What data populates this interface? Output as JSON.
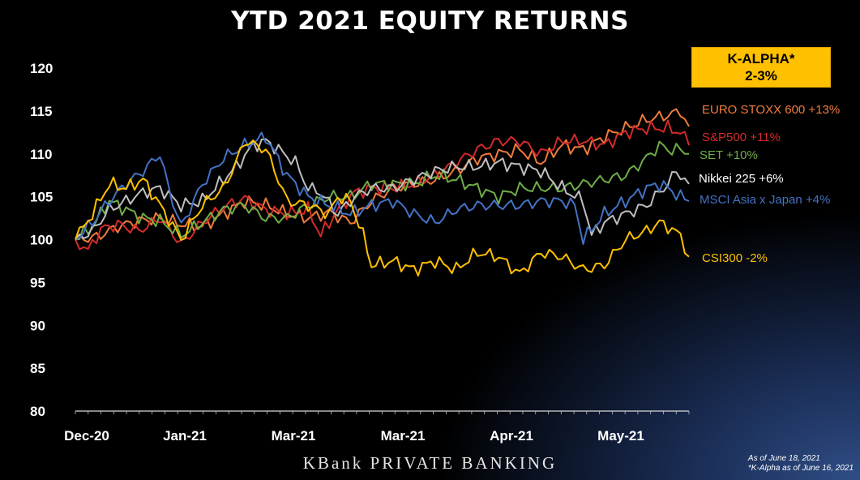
{
  "chart_data": {
    "type": "line",
    "title": "YTD 2021 EQUITY RETURNS",
    "xlabel": "",
    "ylabel": "",
    "ylim": [
      80,
      120
    ],
    "yticks": [
      80,
      85,
      90,
      95,
      100,
      105,
      110,
      115,
      120
    ],
    "xtick_labels": [
      "Dec-20",
      "Jan-21",
      "Mar-21",
      "Mar-21",
      "Apr-21",
      "May-21"
    ],
    "grid": false,
    "legend": "direct labels at right end of each series",
    "n_points": 121,
    "series": [
      {
        "name": "EURO STOXX 600 +13%",
        "color": "#f07c3c",
        "anchors": [
          [
            0,
            100
          ],
          [
            5,
            100.3
          ],
          [
            10,
            101.5
          ],
          [
            15,
            102.2
          ],
          [
            20,
            102.5
          ],
          [
            25,
            101.8
          ],
          [
            30,
            101.5
          ],
          [
            35,
            103
          ],
          [
            40,
            104.5
          ],
          [
            45,
            104
          ],
          [
            50,
            103
          ],
          [
            55,
            102.5
          ],
          [
            60,
            103.2
          ],
          [
            65,
            102
          ],
          [
            70,
            104.5
          ],
          [
            75,
            106
          ],
          [
            80,
            106.5
          ],
          [
            85,
            107
          ],
          [
            90,
            108
          ],
          [
            95,
            109.5
          ],
          [
            100,
            110
          ],
          [
            105,
            110.5
          ],
          [
            110,
            109
          ],
          [
            115,
            111
          ],
          [
            120,
            110.5
          ],
          [
            125,
            112
          ],
          [
            130,
            113
          ],
          [
            135,
            114
          ],
          [
            140,
            114.5
          ],
          [
            143,
            115
          ],
          [
            145,
            113.2
          ]
        ]
      },
      {
        "name": "S&P500 +11%",
        "color": "#d42a2a",
        "anchors": [
          [
            0,
            100
          ],
          [
            3,
            98.7
          ],
          [
            6,
            101.2
          ],
          [
            10,
            101.8
          ],
          [
            15,
            101
          ],
          [
            20,
            102.5
          ],
          [
            25,
            99.5
          ],
          [
            30,
            102
          ],
          [
            35,
            103.8
          ],
          [
            40,
            104.8
          ],
          [
            45,
            103.5
          ],
          [
            50,
            103
          ],
          [
            55,
            103.5
          ],
          [
            58,
            100.5
          ],
          [
            62,
            103.5
          ],
          [
            66,
            105.5
          ],
          [
            70,
            106
          ],
          [
            75,
            106
          ],
          [
            80,
            106.5
          ],
          [
            85,
            107.5
          ],
          [
            90,
            109
          ],
          [
            95,
            110.5
          ],
          [
            100,
            111.5
          ],
          [
            105,
            111.5
          ],
          [
            110,
            110
          ],
          [
            115,
            111.5
          ],
          [
            120,
            111.5
          ],
          [
            125,
            111
          ],
          [
            130,
            112.5
          ],
          [
            135,
            113
          ],
          [
            140,
            113
          ],
          [
            143,
            112.5
          ],
          [
            145,
            111
          ]
        ]
      },
      {
        "name": "SET +10%",
        "color": "#70ad47",
        "anchors": [
          [
            0,
            100
          ],
          [
            4,
            101.5
          ],
          [
            8,
            104.5
          ],
          [
            12,
            103.5
          ],
          [
            16,
            102.5
          ],
          [
            20,
            102.2
          ],
          [
            25,
            100.5
          ],
          [
            30,
            102
          ],
          [
            35,
            103.5
          ],
          [
            40,
            104
          ],
          [
            45,
            102.5
          ],
          [
            50,
            102.5
          ],
          [
            55,
            104
          ],
          [
            60,
            105
          ],
          [
            65,
            105
          ],
          [
            70,
            106.5
          ],
          [
            75,
            106.5
          ],
          [
            80,
            106.5
          ],
          [
            85,
            107.5
          ],
          [
            90,
            107
          ],
          [
            95,
            106
          ],
          [
            100,
            105
          ],
          [
            105,
            106
          ],
          [
            110,
            106
          ],
          [
            115,
            106
          ],
          [
            120,
            106.5
          ],
          [
            125,
            107
          ],
          [
            130,
            107.5
          ],
          [
            135,
            109.5
          ],
          [
            138,
            111
          ],
          [
            140,
            110.5
          ],
          [
            143,
            110.5
          ],
          [
            145,
            110
          ]
        ]
      },
      {
        "name": "Nikkei 225 +6%",
        "color": "#bfbfbf",
        "anchors": [
          [
            0,
            100
          ],
          [
            4,
            101
          ],
          [
            8,
            103.5
          ],
          [
            12,
            104.5
          ],
          [
            16,
            105.5
          ],
          [
            20,
            106
          ],
          [
            25,
            104
          ],
          [
            30,
            104.5
          ],
          [
            35,
            107
          ],
          [
            38,
            108.5
          ],
          [
            42,
            111
          ],
          [
            45,
            111.5
          ],
          [
            48,
            110.5
          ],
          [
            52,
            109
          ],
          [
            55,
            106
          ],
          [
            58,
            105.5
          ],
          [
            62,
            103
          ],
          [
            66,
            105
          ],
          [
            70,
            106
          ],
          [
            75,
            106
          ],
          [
            80,
            107
          ],
          [
            85,
            108
          ],
          [
            90,
            108.5
          ],
          [
            95,
            108.5
          ],
          [
            100,
            109
          ],
          [
            105,
            108.5
          ],
          [
            110,
            108
          ],
          [
            115,
            106
          ],
          [
            120,
            104.5
          ],
          [
            122,
            100.5
          ],
          [
            125,
            102
          ],
          [
            130,
            103
          ],
          [
            135,
            104
          ],
          [
            138,
            105.5
          ],
          [
            140,
            106.5
          ],
          [
            142,
            108
          ],
          [
            145,
            106.5
          ]
        ]
      },
      {
        "name": "MSCI Asia x Japan +4%",
        "color": "#4472c4",
        "anchors": [
          [
            0,
            100
          ],
          [
            4,
            102
          ],
          [
            8,
            104.5
          ],
          [
            12,
            106.5
          ],
          [
            16,
            108
          ],
          [
            20,
            110
          ],
          [
            22,
            106
          ],
          [
            25,
            101.5
          ],
          [
            28,
            104.5
          ],
          [
            30,
            106.5
          ],
          [
            35,
            109.5
          ],
          [
            40,
            111
          ],
          [
            45,
            112
          ],
          [
            50,
            107.5
          ],
          [
            55,
            105
          ],
          [
            60,
            104
          ],
          [
            65,
            103
          ],
          [
            70,
            104
          ],
          [
            75,
            104.5
          ],
          [
            80,
            103
          ],
          [
            85,
            102
          ],
          [
            90,
            103.5
          ],
          [
            95,
            104
          ],
          [
            100,
            104
          ],
          [
            105,
            104
          ],
          [
            110,
            104.5
          ],
          [
            115,
            104.5
          ],
          [
            118,
            104
          ],
          [
            120,
            100
          ],
          [
            125,
            103
          ],
          [
            130,
            104.5
          ],
          [
            135,
            106
          ],
          [
            138,
            106.5
          ],
          [
            140,
            106
          ],
          [
            143,
            105
          ],
          [
            145,
            104.5
          ]
        ]
      },
      {
        "name": "CSI300 -2%",
        "color": "#ffc000",
        "anchors": [
          [
            0,
            100
          ],
          [
            4,
            103
          ],
          [
            8,
            106.5
          ],
          [
            12,
            106
          ],
          [
            16,
            107
          ],
          [
            20,
            104
          ],
          [
            25,
            100
          ],
          [
            30,
            104
          ],
          [
            35,
            106
          ],
          [
            38,
            109
          ],
          [
            40,
            111.5
          ],
          [
            45,
            110.5
          ],
          [
            48,
            107
          ],
          [
            50,
            104.5
          ],
          [
            55,
            104
          ],
          [
            60,
            103
          ],
          [
            62,
            105
          ],
          [
            65,
            104.5
          ],
          [
            68,
            100.5
          ],
          [
            70,
            97
          ],
          [
            75,
            97.5
          ],
          [
            80,
            96.5
          ],
          [
            85,
            97.5
          ],
          [
            90,
            96.5
          ],
          [
            95,
            98.5
          ],
          [
            100,
            98
          ],
          [
            105,
            96
          ],
          [
            110,
            98.5
          ],
          [
            115,
            98
          ],
          [
            120,
            96.5
          ],
          [
            125,
            97
          ],
          [
            130,
            100
          ],
          [
            135,
            101
          ],
          [
            138,
            102
          ],
          [
            140,
            101.5
          ],
          [
            143,
            100.5
          ],
          [
            145,
            98
          ]
        ]
      }
    ]
  },
  "kalpha": {
    "line1": "K-ALPHA*",
    "line2": "2-3%"
  },
  "footer": {
    "brand": "KBank PRIVATE BANKING",
    "note1": "As of June 18, 2021",
    "note2": "*K-Alpha as of June 16, 2021"
  }
}
